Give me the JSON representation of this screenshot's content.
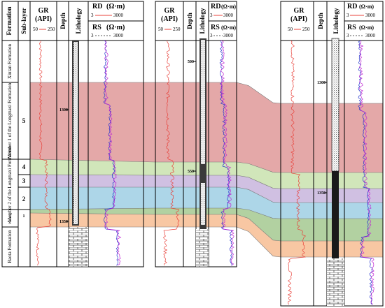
{
  "headers": {
    "formation": "Formation",
    "sublayer": "Sub-layer",
    "gr_title": "GR",
    "gr_unit": "(API)",
    "gr_scale_min": "50",
    "gr_scale_max": "250",
    "depth": "Depth",
    "lithology": "Lithology",
    "rd_title": "RD",
    "rd_unit": "(Ω·m)",
    "rd_scale_min": "3",
    "rd_scale_max": "3000",
    "rs_title": "RS",
    "rs_unit": "(Ω·m)",
    "rs_scale_min": "3",
    "rs_scale_max": "3000"
  },
  "formations": [
    {
      "key": "xintan",
      "label": "Xintan Formation"
    },
    {
      "key": "member1",
      "label": "Member 1 of the Longmaxi Formation"
    },
    {
      "key": "member2",
      "label": "Member 2 of the Longmaxi Formation"
    },
    {
      "key": "wufeng",
      "label": "Wufeng"
    },
    {
      "key": "baota",
      "label": "Baota Formation"
    }
  ],
  "sublayers": [
    "5",
    "4",
    "3",
    "2",
    "1"
  ],
  "wells": [
    {
      "key": "well-a",
      "depth_marks": [
        "1300",
        "1350"
      ]
    },
    {
      "key": "well-b",
      "depth_marks": [
        "500",
        "550"
      ]
    },
    {
      "key": "well-c",
      "depth_marks": [
        "1300",
        "1350"
      ]
    }
  ],
  "colors": {
    "member1": "#e3a3a3",
    "sublayer4": "#cfe5b6",
    "sublayer3": "#cdbde0",
    "sublayer2": "#a9d4e7",
    "wufeng": "#aecf9c",
    "baota": "#f8c49e",
    "gr_curve": "#e8413a",
    "rd_curve": "#2233cc",
    "rs_curve": "#c026d3"
  }
}
